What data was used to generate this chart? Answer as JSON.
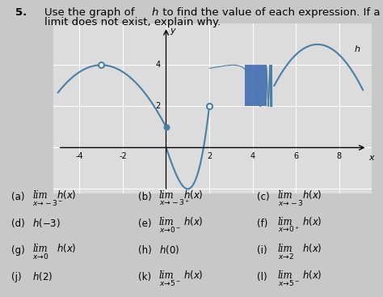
{
  "bg_color": "#c8c8c8",
  "graph_bg": "#dcdcdc",
  "curve_color": "#4a7fa5",
  "fill_color": "#2255aa",
  "graph_xlim": [
    -5.2,
    9.5
  ],
  "graph_ylim": [
    -2.2,
    6.0
  ],
  "xtick_labels": [
    "-4",
    "-2",
    "2",
    "4",
    "6",
    "8"
  ],
  "xtick_vals": [
    -4,
    -2,
    2,
    4,
    6,
    8
  ],
  "ytick_labels": [
    "2",
    "4"
  ],
  "ytick_vals": [
    2,
    4
  ],
  "title_num": "5.",
  "title_rest1": " Use the graph of ",
  "title_h": "h",
  "title_rest2": " to find the value of each expression. If a",
  "title_line2": "   limit does not exist, explain why.",
  "items": [
    {
      "label": "(a)",
      "expr": "$\\lim$",
      "sub": "$x\\!\\to\\!-3^-$",
      "fn": "$h(x)$",
      "col": 0,
      "row": 0
    },
    {
      "label": "(b)",
      "expr": "$\\lim$",
      "sub": "$x\\!\\to\\!-3^+$",
      "fn": "$h(x)$",
      "col": 1,
      "row": 0
    },
    {
      "label": "(c)",
      "expr": "$\\lim$",
      "sub": "$x\\!\\to\\!-3$",
      "fn": "$h(x)$",
      "col": 2,
      "row": 0
    },
    {
      "label": "(d)",
      "expr": "$h(-3)$",
      "sub": "",
      "fn": "",
      "col": 0,
      "row": 1
    },
    {
      "label": "(e)",
      "expr": "$\\lim$",
      "sub": "$x\\!\\to\\!0^-$",
      "fn": "$h(x)$",
      "col": 1,
      "row": 1
    },
    {
      "label": "(f)",
      "expr": "$\\lim$",
      "sub": "$x\\!\\to\\!0^+$",
      "fn": "$h(x)$",
      "col": 2,
      "row": 1
    },
    {
      "label": "(g)",
      "expr": "$\\lim$",
      "sub": "$x\\!\\to\\!0$",
      "fn": "$h(x)$",
      "col": 0,
      "row": 2
    },
    {
      "label": "(h)",
      "expr": "$h(0)$",
      "sub": "",
      "fn": "",
      "col": 1,
      "row": 2
    },
    {
      "label": "(i)",
      "expr": "$\\lim$",
      "sub": "$x\\!\\to\\!2$",
      "fn": "$h(x)$",
      "col": 2,
      "row": 2
    },
    {
      "label": "(j)",
      "expr": "$h(2)$",
      "sub": "",
      "fn": "",
      "col": 0,
      "row": 3
    },
    {
      "label": "(k)",
      "expr": "$\\lim$",
      "sub": "$x\\!\\to\\!5^-$",
      "fn": "$h(x)$",
      "col": 1,
      "row": 3
    },
    {
      "label": "(l)",
      "expr": "$\\lim$",
      "sub": "$x\\!\\to\\!5^-$",
      "fn": "$h(x)$",
      "col": 2,
      "row": 3
    }
  ]
}
